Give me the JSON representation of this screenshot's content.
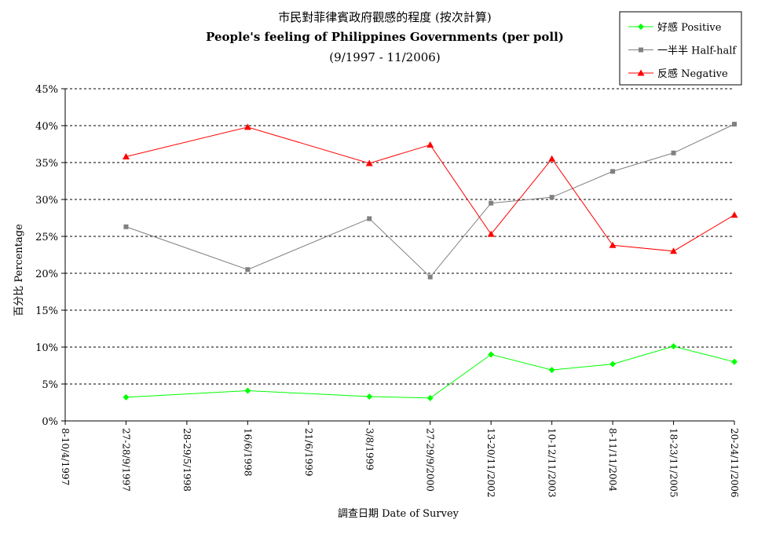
{
  "chart_data": {
    "type": "line",
    "title": "市民對菲律賓政府觀感的程度 (按次計算)",
    "subtitle": "People's feeling of Philippines Governments (per poll)",
    "period": "(9/1997 - 11/2006)",
    "xlabel": "調查日期 Date of Survey",
    "ylabel": "百分比 Percentage",
    "ylim": [
      0,
      45
    ],
    "yticks": [
      "0%",
      "5%",
      "10%",
      "15%",
      "20%",
      "25%",
      "30%",
      "35%",
      "40%",
      "45%"
    ],
    "grid": true,
    "legend_position": "top-right",
    "categories": [
      "8-10/4/1997",
      "27-28/9/1997",
      "28-29/5/1998",
      "16/6/1998",
      "21/6/1999",
      "3/8/1999",
      "27-29/9/2000",
      "13-20/11/2002",
      "10-12/11/2003",
      "8-11/11/2004",
      "18-23/11/2005",
      "20-24/11/2006"
    ],
    "series": [
      {
        "name": "好感 Positive",
        "color": "#00ff00",
        "marker": "diamond",
        "values": [
          null,
          3.2,
          null,
          4.1,
          null,
          3.3,
          3.1,
          9.0,
          6.9,
          7.7,
          10.1,
          8.0
        ]
      },
      {
        "name": "一半半 Half-half",
        "color": "#808080",
        "marker": "square",
        "values": [
          null,
          26.3,
          null,
          20.5,
          null,
          27.4,
          19.5,
          29.5,
          30.3,
          33.8,
          36.3,
          40.2
        ]
      },
      {
        "name": "反感 Negative",
        "color": "#ff0000",
        "marker": "triangle",
        "values": [
          null,
          35.8,
          null,
          39.8,
          null,
          34.9,
          37.4,
          25.3,
          35.5,
          23.8,
          23.0,
          27.9
        ]
      }
    ]
  }
}
